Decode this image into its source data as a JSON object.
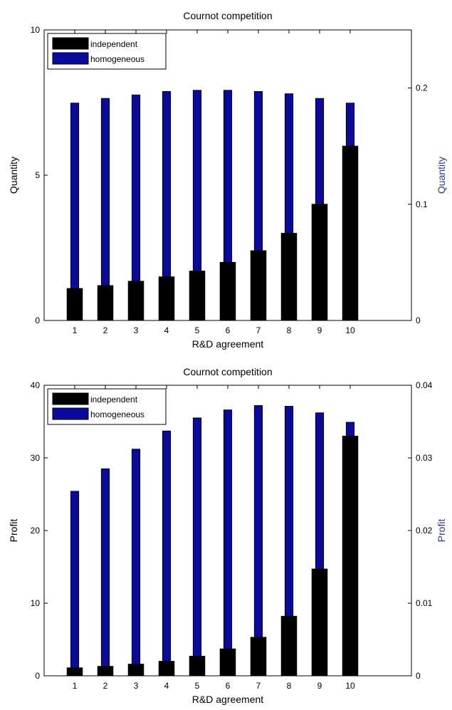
{
  "colors": {
    "independent": "#000000",
    "homogeneous": "#0a0a9e",
    "right_axis_label": "#2a3a8c"
  },
  "chart_data": [
    {
      "type": "bar",
      "title": "Cournot competition",
      "xlabel": "R&D agreement",
      "ylabel_left": "Quantity",
      "ylabel_right": "Quantity",
      "categories": [
        "1",
        "2",
        "3",
        "4",
        "5",
        "6",
        "7",
        "8",
        "9",
        "10"
      ],
      "xlim": [
        0,
        12
      ],
      "ylim_left": [
        0,
        10
      ],
      "ylim_right": [
        0,
        0.25
      ],
      "yticks_left": [
        "0",
        "5",
        "10"
      ],
      "yticks_right": [
        "0",
        "0.1",
        "0.2"
      ],
      "legend": {
        "position": "top-left",
        "entries": [
          "independent",
          "homogeneous"
        ]
      },
      "series": [
        {
          "name": "independent",
          "axis": "left",
          "values": [
            1.1,
            1.2,
            1.35,
            1.5,
            1.7,
            2.0,
            2.4,
            3.0,
            4.0,
            6.0
          ]
        },
        {
          "name": "homogeneous",
          "axis": "right",
          "values": [
            0.187,
            0.191,
            0.194,
            0.197,
            0.198,
            0.198,
            0.197,
            0.195,
            0.191,
            0.187
          ]
        }
      ]
    },
    {
      "type": "bar",
      "title": "Cournot competition",
      "xlabel": "R&D agreement",
      "ylabel_left": "Profit",
      "ylabel_right": "Profit",
      "categories": [
        "1",
        "2",
        "3",
        "4",
        "5",
        "6",
        "7",
        "8",
        "9",
        "10"
      ],
      "xlim": [
        0,
        12
      ],
      "ylim_left": [
        0,
        40
      ],
      "ylim_right": [
        0,
        0.04
      ],
      "yticks_left": [
        "0",
        "10",
        "20",
        "30",
        "40"
      ],
      "yticks_right": [
        "0",
        "0.01",
        "0.02",
        "0.03",
        "0.04"
      ],
      "legend": {
        "position": "top-left",
        "entries": [
          "independent",
          "homogeneous"
        ]
      },
      "series": [
        {
          "name": "independent",
          "axis": "left",
          "values": [
            1.1,
            1.3,
            1.6,
            2.0,
            2.7,
            3.7,
            5.3,
            8.2,
            14.7,
            33.0
          ]
        },
        {
          "name": "homogeneous",
          "axis": "right",
          "values": [
            0.0254,
            0.0285,
            0.0312,
            0.0337,
            0.0355,
            0.0366,
            0.0372,
            0.0371,
            0.0362,
            0.0349
          ]
        }
      ]
    }
  ]
}
